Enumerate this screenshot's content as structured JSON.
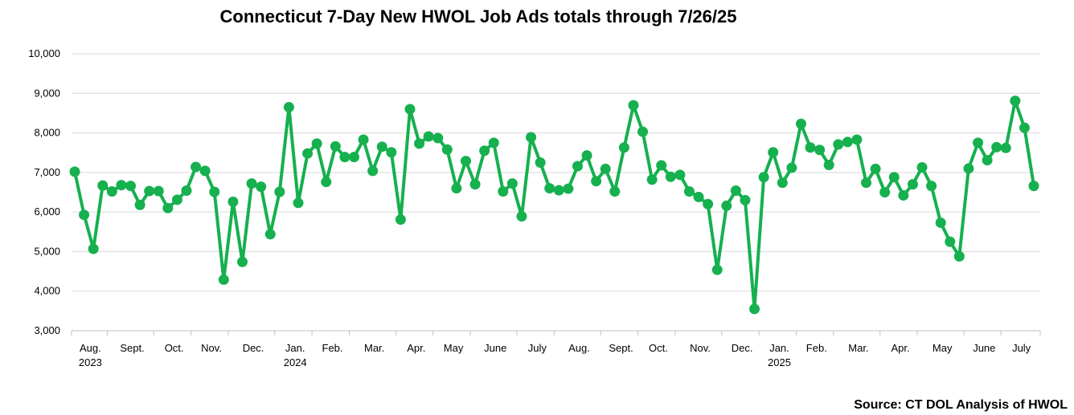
{
  "chart_data": {
    "type": "line",
    "title": "Connecticut 7-Day New HWOL Job Ads totals through 7/26/25",
    "source": "Source: CT DOL Analysis of HWOL",
    "xlabel": "",
    "ylabel": "",
    "ylim": [
      3000,
      10000
    ],
    "y_ticks": [
      "3,000",
      "4,000",
      "5,000",
      "6,000",
      "7,000",
      "8,000",
      "9,000",
      "10,000"
    ],
    "y_tick_values": [
      3000,
      4000,
      5000,
      6000,
      7000,
      8000,
      9000,
      10000
    ],
    "x_labels": [
      {
        "label": "Aug.",
        "sub": "2023",
        "index": 0
      },
      {
        "label": "Sept.",
        "sub": "",
        "index": 4
      },
      {
        "label": "Oct.",
        "sub": "",
        "index": 9
      },
      {
        "label": "Nov.",
        "sub": "",
        "index": 13
      },
      {
        "label": "Dec.",
        "sub": "",
        "index": 17
      },
      {
        "label": "Jan.",
        "sub": "2024",
        "index": 22
      },
      {
        "label": "Feb.",
        "sub": "",
        "index": 26
      },
      {
        "label": "Mar.",
        "sub": "",
        "index": 30
      },
      {
        "label": "Apr.",
        "sub": "",
        "index": 35
      },
      {
        "label": "May",
        "sub": "",
        "index": 39
      },
      {
        "label": "June",
        "sub": "",
        "index": 43
      },
      {
        "label": "July",
        "sub": "",
        "index": 48
      },
      {
        "label": "Aug.",
        "sub": "",
        "index": 52
      },
      {
        "label": "Sept.",
        "sub": "",
        "index": 57
      },
      {
        "label": "Oct.",
        "sub": "",
        "index": 61
      },
      {
        "label": "Nov.",
        "sub": "",
        "index": 65
      },
      {
        "label": "Dec.",
        "sub": "",
        "index": 70
      },
      {
        "label": "Jan.",
        "sub": "2025",
        "index": 74
      },
      {
        "label": "Feb.",
        "sub": "",
        "index": 78
      },
      {
        "label": "Mar.",
        "sub": "",
        "index": 82
      },
      {
        "label": "Apr.",
        "sub": "",
        "index": 87
      },
      {
        "label": "May",
        "sub": "",
        "index": 91
      },
      {
        "label": "June",
        "sub": "",
        "index": 96
      },
      {
        "label": "July",
        "sub": "",
        "index": 100
      }
    ],
    "grid": true,
    "legend": "none",
    "line_color": "#16b04f",
    "values": [
      7020,
      5930,
      5070,
      6670,
      6520,
      6680,
      6660,
      6180,
      6530,
      6530,
      6100,
      6310,
      6540,
      7140,
      7040,
      6510,
      4290,
      6260,
      4740,
      6720,
      6640,
      5440,
      6510,
      8650,
      6230,
      7480,
      7730,
      6760,
      7660,
      7390,
      7390,
      7830,
      7040,
      7650,
      7510,
      5810,
      8600,
      7730,
      7910,
      7870,
      7580,
      6600,
      7290,
      6700,
      7550,
      7750,
      6520,
      6720,
      5890,
      7890,
      7250,
      6600,
      6550,
      6590,
      7160,
      7430,
      6780,
      7090,
      6520,
      7630,
      8700,
      8030,
      6820,
      7180,
      6890,
      6940,
      6520,
      6380,
      6200,
      4540,
      6160,
      6540,
      6300,
      3550,
      6880,
      7510,
      6740,
      7120,
      8230,
      7630,
      7570,
      7190,
      7710,
      7770,
      7830,
      6740,
      7090,
      6500,
      6880,
      6420,
      6700,
      7130,
      6660,
      5730,
      5250,
      4880,
      7100,
      7750,
      7310,
      7640,
      7620,
      8810,
      8130,
      6660
    ]
  }
}
